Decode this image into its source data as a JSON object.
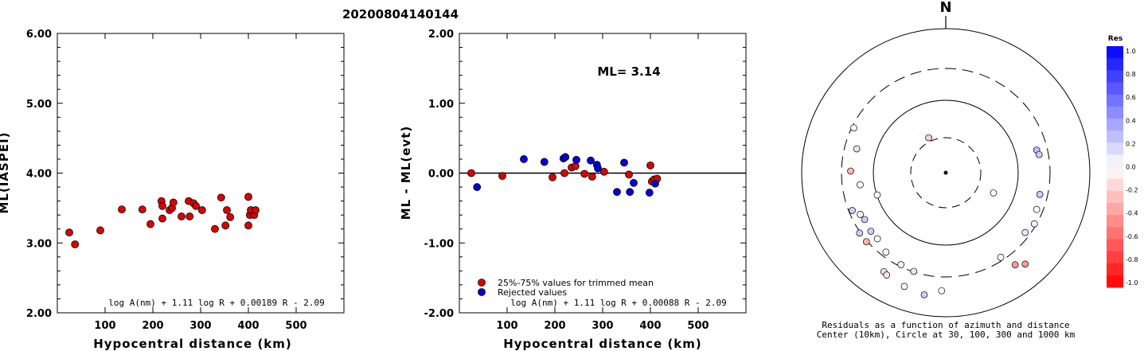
{
  "figure_title": "20200804140144",
  "chart_data": [
    {
      "type": "scatter",
      "ylabel": "ML(IASPEI)",
      "xlabel": "Hypocentral distance (km)",
      "xlim": [
        0,
        600
      ],
      "ylim": [
        2.0,
        6.0
      ],
      "x_ticks": [
        100,
        200,
        300,
        400,
        500
      ],
      "x_tick_labels": [
        "100",
        "200",
        "300",
        "400",
        "500"
      ],
      "y_ticks": [
        2.0,
        3.0,
        4.0,
        5.0,
        6.0
      ],
      "y_tick_labels": [
        "2.00",
        "3.00",
        "4.00",
        "5.00",
        "6.00"
      ],
      "formula": "log A(nm) + 1.11 log R + 0.00189 R - 2.09",
      "marker_color": "#dd0000",
      "points": [
        [
          25,
          3.15
        ],
        [
          37,
          2.98
        ],
        [
          90,
          3.18
        ],
        [
          135,
          3.48
        ],
        [
          178,
          3.48
        ],
        [
          195,
          3.27
        ],
        [
          218,
          3.6
        ],
        [
          220,
          3.53
        ],
        [
          220,
          3.35
        ],
        [
          235,
          3.47
        ],
        [
          240,
          3.5
        ],
        [
          243,
          3.58
        ],
        [
          260,
          3.38
        ],
        [
          275,
          3.6
        ],
        [
          277,
          3.38
        ],
        [
          285,
          3.57
        ],
        [
          290,
          3.53
        ],
        [
          303,
          3.47
        ],
        [
          330,
          3.2
        ],
        [
          343,
          3.65
        ],
        [
          352,
          3.25
        ],
        [
          355,
          3.47
        ],
        [
          362,
          3.37
        ],
        [
          400,
          3.66
        ],
        [
          400,
          3.25
        ],
        [
          403,
          3.4
        ],
        [
          405,
          3.47
        ],
        [
          412,
          3.4
        ],
        [
          415,
          3.47
        ]
      ]
    },
    {
      "type": "scatter",
      "ylabel": "ML - ML(evt)",
      "xlabel": "Hypocentral distance (km)",
      "xlim": [
        0,
        600
      ],
      "ylim": [
        -2.0,
        2.0
      ],
      "x_ticks": [
        100,
        200,
        300,
        400,
        500
      ],
      "x_tick_labels": [
        "100",
        "200",
        "300",
        "400",
        "500"
      ],
      "y_ticks": [
        -2.0,
        -1.0,
        0.0,
        1.0,
        2.0
      ],
      "y_tick_labels": [
        "-2.00",
        "-1.00",
        "0.00",
        "1.00",
        "2.00"
      ],
      "reference_line": 0.0,
      "annotation": "ML= 3.14",
      "formula": "log A(nm) + 1.11 log R + 0.00088 R - 2.09",
      "series": [
        {
          "name": "25%-75% values for trimmed mean",
          "color": "#dd0000",
          "points": [
            [
              25,
              0.0
            ],
            [
              90,
              -0.04
            ],
            [
              195,
              -0.06
            ],
            [
              220,
              0.0
            ],
            [
              235,
              0.08
            ],
            [
              243,
              0.1
            ],
            [
              262,
              -0.01
            ],
            [
              278,
              -0.05
            ],
            [
              303,
              0.02
            ],
            [
              355,
              -0.02
            ],
            [
              400,
              0.11
            ],
            [
              403,
              -0.12
            ],
            [
              408,
              -0.09
            ],
            [
              414,
              -0.08
            ]
          ]
        },
        {
          "name": "Rejected values",
          "color": "#0000dd",
          "points": [
            [
              37,
              -0.2
            ],
            [
              135,
              0.2
            ],
            [
              178,
              0.16
            ],
            [
              218,
              0.21
            ],
            [
              222,
              0.23
            ],
            [
              245,
              0.19
            ],
            [
              275,
              0.18
            ],
            [
              288,
              0.12
            ],
            [
              290,
              0.07
            ],
            [
              330,
              -0.27
            ],
            [
              345,
              0.15
            ],
            [
              357,
              -0.27
            ],
            [
              365,
              -0.14
            ],
            [
              398,
              -0.28
            ],
            [
              410,
              -0.15
            ]
          ]
        }
      ]
    },
    {
      "type": "scatter",
      "subtype": "polar residual map",
      "north_label": "N",
      "caption_line1": "Residuals as a function of azimuth and distance",
      "caption_line2": "Center (10km), Circle at 30, 100, 300 and 1000 km",
      "rings_km": [
        30,
        100,
        300,
        1000
      ],
      "colorbar_title": "Res",
      "colorbar_ticks": [
        "1.0",
        "0.8",
        "0.6",
        "0.4",
        "0.2",
        "0.0",
        "-0.2",
        "-0.4",
        "-0.6",
        "-0.8",
        "-1.0"
      ],
      "stations": [
        {
          "az": 217,
          "r": 0.69,
          "res": 0.0
        },
        {
          "az": 206,
          "r": 0.71,
          "res": 0.05
        },
        {
          "az": 212,
          "r": 0.81,
          "res": -0.15
        },
        {
          "az": 229,
          "r": 0.73,
          "res": -0.3
        },
        {
          "az": 210,
          "r": 0.82,
          "res": -0.1
        },
        {
          "az": 198,
          "r": 0.72,
          "res": 0.1
        },
        {
          "az": 200,
          "r": 0.84,
          "res": 0.05
        },
        {
          "az": 190,
          "r": 0.86,
          "res": 0.2
        },
        {
          "az": 182,
          "r": 0.82,
          "res": 0.0
        },
        {
          "az": 226,
          "r": 0.66,
          "res": 0.0
        },
        {
          "az": 232,
          "r": 0.66,
          "res": 0.2
        },
        {
          "az": 235,
          "r": 0.73,
          "res": 0.2
        },
        {
          "az": 240,
          "r": 0.65,
          "res": 0.2
        },
        {
          "az": 244,
          "r": 0.66,
          "res": -0.05
        },
        {
          "az": 248,
          "r": 0.7,
          "res": 0.2
        },
        {
          "az": 252,
          "r": 0.5,
          "res": 0.0
        },
        {
          "az": 262,
          "r": 0.6,
          "res": 0.0
        },
        {
          "az": 271,
          "r": 0.66,
          "res": -0.3
        },
        {
          "az": 285,
          "r": 0.64,
          "res": 0.1
        },
        {
          "az": 296,
          "r": 0.71,
          "res": 0.0
        },
        {
          "az": 147,
          "r": 0.7,
          "res": 0.0
        },
        {
          "az": 143,
          "r": 0.8,
          "res": -0.4
        },
        {
          "az": 139,
          "r": 0.84,
          "res": -0.4
        },
        {
          "az": 127,
          "r": 0.69,
          "res": 0.1
        },
        {
          "az": 120,
          "r": 0.71,
          "res": 0.05
        },
        {
          "az": 112,
          "r": 0.68,
          "res": 0.0
        },
        {
          "az": 103,
          "r": 0.67,
          "res": 0.2
        },
        {
          "az": 76,
          "r": 0.65,
          "res": 0.25
        },
        {
          "az": 334,
          "r": 0.27,
          "res": -0.2
        },
        {
          "az": 113,
          "r": 0.36,
          "res": 0.0
        },
        {
          "az": 79,
          "r": 0.66,
          "res": 0.2
        }
      ]
    }
  ]
}
